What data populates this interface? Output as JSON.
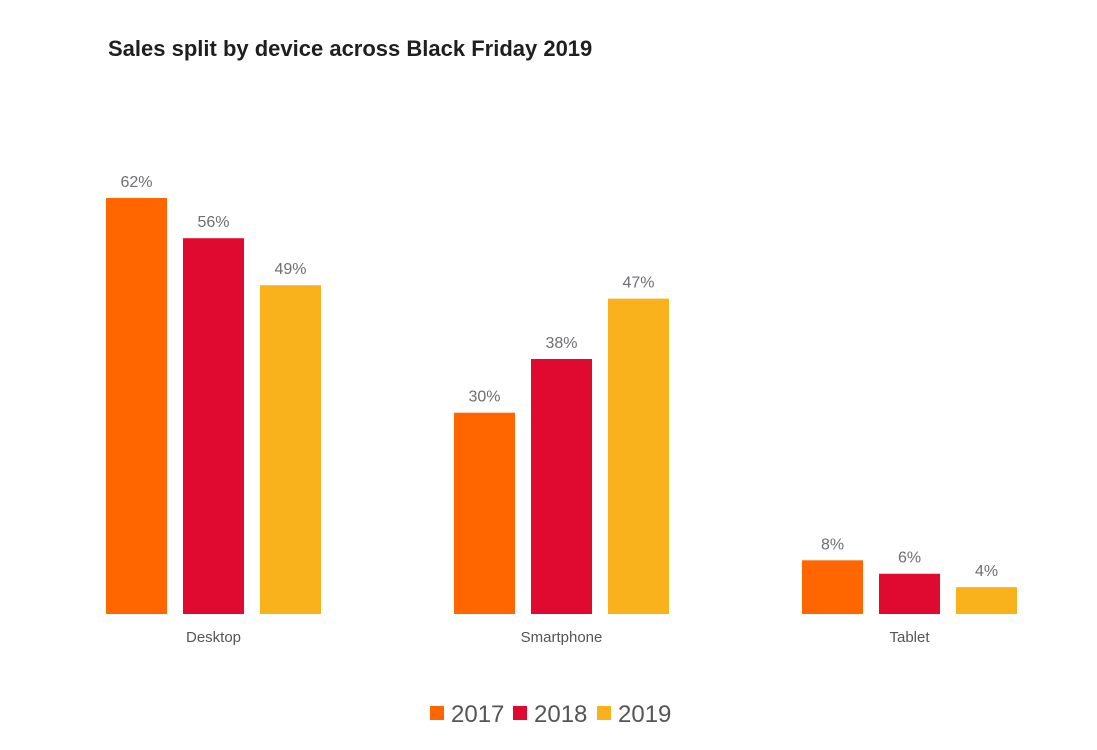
{
  "chart_data": {
    "type": "bar",
    "title": "Sales split by device across Black Friday 2019",
    "xlabel": "",
    "ylabel": "",
    "ylim": [
      0,
      62
    ],
    "grid": false,
    "legend_position": "bottom-center",
    "categories": [
      "Desktop",
      "Smartphone",
      "Tablet"
    ],
    "series": [
      {
        "name": "2017",
        "color": "#ff6600",
        "values": [
          62,
          30,
          8
        ]
      },
      {
        "name": "2018",
        "color": "#e0092f",
        "values": [
          56,
          38,
          6
        ]
      },
      {
        "name": "2019",
        "color": "#f9b11c",
        "values": [
          49,
          47,
          4
        ]
      }
    ],
    "value_labels": [
      [
        "62%",
        "30%",
        "8%"
      ],
      [
        "56%",
        "38%",
        "6%"
      ],
      [
        "49%",
        "47%",
        "4%"
      ]
    ]
  }
}
